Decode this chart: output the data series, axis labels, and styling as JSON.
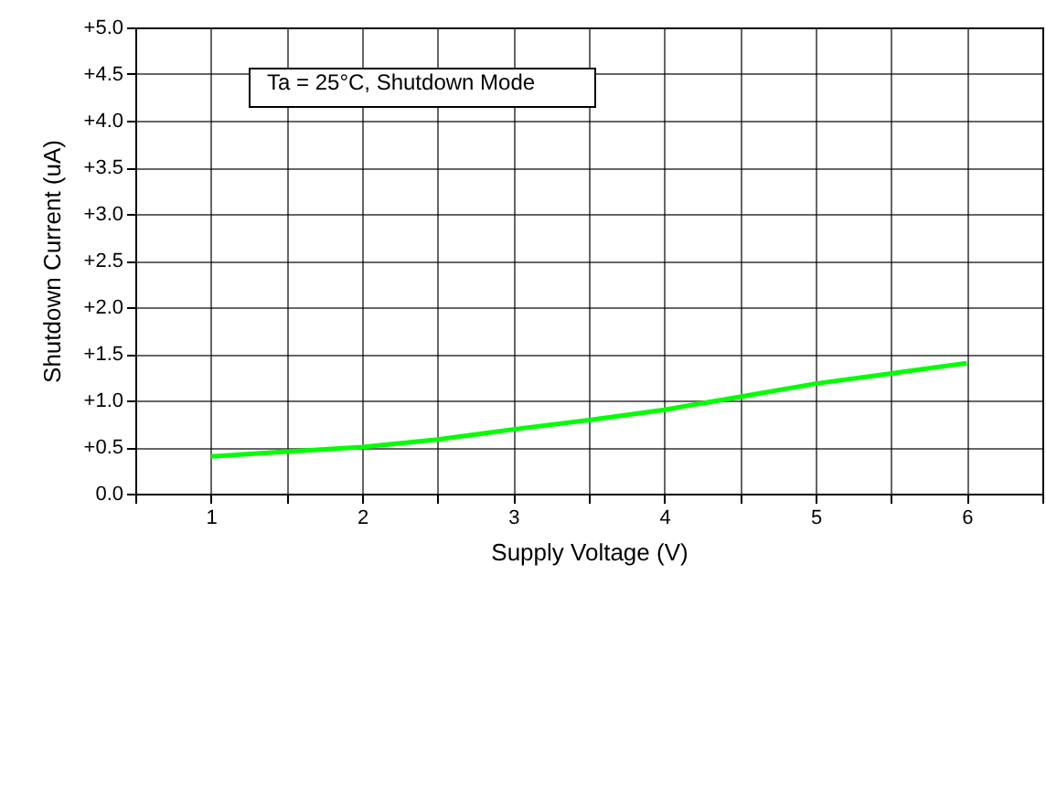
{
  "chart_data": {
    "type": "line",
    "xlabel": "Supply Voltage (V)",
    "ylabel": "Shutdown Current (uA)",
    "annotations": [
      "Ta = 25°C, Shutdown Mode"
    ],
    "x": [
      1,
      1.5,
      2,
      2.5,
      3,
      3.5,
      4,
      4.5,
      5,
      5.5,
      6
    ],
    "series": [
      {
        "color": "#00ff00",
        "values": [
          0.4,
          0.45,
          0.5,
          0.58,
          0.69,
          0.79,
          0.9,
          1.04,
          1.18,
          1.29,
          1.4
        ]
      }
    ],
    "xlim": [
      0.5,
      6.5
    ],
    "xticks": [
      {
        "value": 0.5,
        "label": null
      },
      1,
      {
        "value": 1.5,
        "label": null
      },
      2,
      {
        "value": 2.5,
        "label": null
      },
      3,
      {
        "value": 3.5,
        "label": null
      },
      4,
      {
        "value": 4.5,
        "label": null
      },
      5,
      {
        "value": 5.5,
        "label": null
      },
      6,
      {
        "value": 6.5,
        "label": null
      }
    ],
    "ylim": [
      0,
      5
    ],
    "yticks": [
      {
        "value": 0,
        "label": "0.0"
      },
      {
        "value": 0.5,
        "label": "+0.5"
      },
      {
        "value": 1,
        "label": "+1.0"
      },
      {
        "value": 1.5,
        "label": "+1.5"
      },
      {
        "value": 2,
        "label": "+2.0"
      },
      {
        "value": 2.5,
        "label": "+2.5"
      },
      {
        "value": 3,
        "label": "+3.0"
      },
      {
        "value": 3.5,
        "label": "+3.5"
      },
      {
        "value": 4,
        "label": "+4.0"
      },
      {
        "value": 4.5,
        "label": "+4.5"
      },
      {
        "value": 5,
        "label": "+5.0"
      }
    ],
    "grid": true,
    "marker": "none",
    "line_style": "solid"
  }
}
